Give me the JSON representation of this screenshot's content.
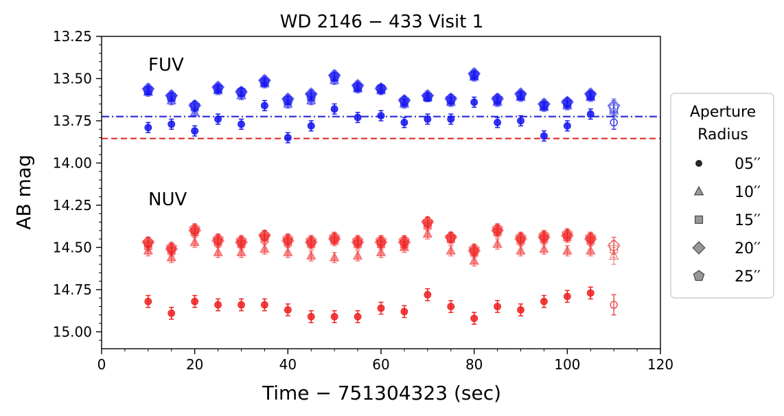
{
  "chart_data": {
    "type": "scatter",
    "title": "WD 2146 − 433 Visit 1",
    "xlabel": "Time − 751304323 (sec)",
    "ylabel": "AB mag",
    "xlim": [
      0,
      120
    ],
    "ylim": [
      15.1,
      13.25
    ],
    "y_inverted": true,
    "xticks": [
      "0",
      "20",
      "40",
      "60",
      "80",
      "100",
      "120"
    ],
    "yticks": [
      "13.25",
      "13.50",
      "13.75",
      "14.00",
      "14.25",
      "14.50",
      "14.75",
      "15.00"
    ],
    "xtick_values": [
      0,
      20,
      40,
      60,
      80,
      100,
      120
    ],
    "ytick_values": [
      13.25,
      13.5,
      13.75,
      14.0,
      14.25,
      14.5,
      14.75,
      15.0
    ],
    "band_labels": {
      "fuv": "FUV",
      "nuv": "NUV"
    },
    "reference_lines": [
      {
        "name": "FUV reference",
        "y": 13.725,
        "color": "#3b3bd8",
        "style": "dashdot"
      },
      {
        "name": "catalog reference",
        "y": 13.855,
        "color": "#e84040",
        "style": "dashed"
      }
    ],
    "legend": {
      "title_line1": "Aperture",
      "title_line2": "Radius",
      "position": "right",
      "entries": [
        {
          "label": "05′′",
          "marker": "circle"
        },
        {
          "label": "10′′",
          "marker": "triangle"
        },
        {
          "label": "15′′",
          "marker": "square"
        },
        {
          "label": "20′′",
          "marker": "diamond"
        },
        {
          "label": "25′′",
          "marker": "pentagon"
        }
      ]
    },
    "x": [
      10,
      15,
      20,
      25,
      30,
      35,
      40,
      45,
      50,
      55,
      60,
      65,
      70,
      75,
      80,
      85,
      90,
      95,
      100,
      105,
      110
    ],
    "series": [
      {
        "name": "FUV 05′′",
        "band": "fuv",
        "marker": "circle",
        "values": [
          13.79,
          13.77,
          13.81,
          13.74,
          13.77,
          13.66,
          13.85,
          13.78,
          13.68,
          13.73,
          13.72,
          13.76,
          13.74,
          13.74,
          13.64,
          13.76,
          13.75,
          13.84,
          13.78,
          13.71,
          13.76
        ],
        "errors": [
          0.03,
          0.03,
          0.03,
          0.03,
          0.03,
          0.03,
          0.03,
          0.03,
          0.03,
          0.03,
          0.03,
          0.03,
          0.03,
          0.03,
          0.03,
          0.03,
          0.03,
          0.03,
          0.03,
          0.03,
          0.04
        ]
      },
      {
        "name": "FUV 10′′",
        "band": "fuv",
        "marker": "triangle",
        "values": [
          13.58,
          13.63,
          13.7,
          13.57,
          13.6,
          13.53,
          13.65,
          13.63,
          13.51,
          13.56,
          13.57,
          13.65,
          13.61,
          13.64,
          13.49,
          13.64,
          13.61,
          13.67,
          13.66,
          13.61,
          13.69
        ],
        "errors": [
          0.025,
          0.025,
          0.025,
          0.025,
          0.025,
          0.025,
          0.025,
          0.025,
          0.025,
          0.025,
          0.025,
          0.025,
          0.025,
          0.025,
          0.025,
          0.025,
          0.025,
          0.025,
          0.025,
          0.025,
          0.04
        ]
      },
      {
        "name": "FUV 15′′",
        "band": "fuv",
        "marker": "square",
        "values": [
          13.57,
          13.61,
          13.67,
          13.56,
          13.58,
          13.52,
          13.63,
          13.61,
          13.49,
          13.55,
          13.56,
          13.64,
          13.61,
          13.63,
          13.48,
          13.63,
          13.6,
          13.66,
          13.65,
          13.6,
          13.68
        ],
        "errors": [
          0.025,
          0.025,
          0.025,
          0.025,
          0.025,
          0.025,
          0.025,
          0.025,
          0.025,
          0.025,
          0.025,
          0.025,
          0.025,
          0.025,
          0.025,
          0.025,
          0.025,
          0.025,
          0.025,
          0.025,
          0.04
        ]
      },
      {
        "name": "FUV 20′′",
        "band": "fuv",
        "marker": "diamond",
        "values": [
          13.56,
          13.6,
          13.66,
          13.55,
          13.58,
          13.51,
          13.62,
          13.59,
          13.48,
          13.54,
          13.56,
          13.63,
          13.6,
          13.62,
          13.47,
          13.62,
          13.59,
          13.65,
          13.64,
          13.59,
          13.66
        ],
        "errors": [
          0.025,
          0.025,
          0.025,
          0.025,
          0.025,
          0.025,
          0.025,
          0.025,
          0.025,
          0.025,
          0.025,
          0.025,
          0.025,
          0.025,
          0.025,
          0.025,
          0.025,
          0.025,
          0.025,
          0.025,
          0.04
        ]
      },
      {
        "name": "FUV 25′′",
        "band": "fuv",
        "marker": "pentagon",
        "values": [
          13.57,
          13.61,
          13.66,
          13.56,
          13.58,
          13.52,
          13.63,
          13.6,
          13.49,
          13.55,
          13.56,
          13.63,
          13.61,
          13.62,
          13.48,
          13.62,
          13.6,
          13.66,
          13.64,
          13.6,
          13.67
        ],
        "errors": [
          0.025,
          0.025,
          0.025,
          0.025,
          0.025,
          0.025,
          0.025,
          0.025,
          0.025,
          0.025,
          0.025,
          0.025,
          0.025,
          0.025,
          0.025,
          0.025,
          0.025,
          0.025,
          0.025,
          0.025,
          0.04
        ]
      },
      {
        "name": "NUV 05′′",
        "band": "nuv",
        "marker": "circle",
        "values": [
          14.82,
          14.89,
          14.82,
          14.84,
          14.84,
          14.84,
          14.87,
          14.91,
          14.91,
          14.91,
          14.86,
          14.88,
          14.78,
          14.85,
          14.92,
          14.85,
          14.87,
          14.82,
          14.79,
          14.77,
          14.84
        ],
        "errors": [
          0.035,
          0.035,
          0.035,
          0.035,
          0.035,
          0.035,
          0.035,
          0.035,
          0.035,
          0.035,
          0.035,
          0.035,
          0.035,
          0.035,
          0.035,
          0.035,
          0.035,
          0.035,
          0.035,
          0.035,
          0.06
        ]
      },
      {
        "name": "NUV 10′′",
        "band": "nuv",
        "marker": "triangle",
        "values": [
          14.52,
          14.56,
          14.47,
          14.53,
          14.53,
          14.51,
          14.53,
          14.55,
          14.56,
          14.55,
          14.53,
          14.5,
          14.42,
          14.52,
          14.58,
          14.48,
          14.52,
          14.51,
          14.52,
          14.52,
          14.55
        ],
        "errors": [
          0.03,
          0.03,
          0.03,
          0.03,
          0.03,
          0.03,
          0.03,
          0.03,
          0.03,
          0.03,
          0.03,
          0.03,
          0.03,
          0.03,
          0.03,
          0.03,
          0.03,
          0.03,
          0.03,
          0.03,
          0.05
        ]
      },
      {
        "name": "NUV 15′′",
        "band": "nuv",
        "marker": "square",
        "values": [
          14.49,
          14.52,
          14.41,
          14.47,
          14.48,
          14.45,
          14.47,
          14.48,
          14.46,
          14.48,
          14.48,
          14.48,
          14.37,
          14.45,
          14.53,
          14.41,
          14.46,
          14.45,
          14.44,
          14.46,
          14.51
        ],
        "errors": [
          0.03,
          0.03,
          0.03,
          0.03,
          0.03,
          0.03,
          0.03,
          0.03,
          0.03,
          0.03,
          0.03,
          0.03,
          0.03,
          0.03,
          0.03,
          0.03,
          0.03,
          0.03,
          0.03,
          0.03,
          0.05
        ]
      },
      {
        "name": "NUV 20′′",
        "band": "nuv",
        "marker": "diamond",
        "values": [
          14.47,
          14.51,
          14.4,
          14.46,
          14.47,
          14.43,
          14.46,
          14.47,
          14.45,
          14.47,
          14.47,
          14.47,
          14.35,
          14.44,
          14.52,
          14.4,
          14.45,
          14.44,
          14.43,
          14.45,
          14.49
        ],
        "errors": [
          0.03,
          0.03,
          0.03,
          0.03,
          0.03,
          0.03,
          0.03,
          0.03,
          0.03,
          0.03,
          0.03,
          0.03,
          0.03,
          0.03,
          0.03,
          0.03,
          0.03,
          0.03,
          0.03,
          0.03,
          0.05
        ]
      },
      {
        "name": "NUV 25′′",
        "band": "nuv",
        "marker": "pentagon",
        "values": [
          14.47,
          14.5,
          14.39,
          14.45,
          14.46,
          14.43,
          14.45,
          14.46,
          14.44,
          14.46,
          14.46,
          14.46,
          14.35,
          14.44,
          14.51,
          14.39,
          14.44,
          14.43,
          14.42,
          14.44,
          14.49
        ],
        "errors": [
          0.03,
          0.03,
          0.03,
          0.03,
          0.03,
          0.03,
          0.03,
          0.03,
          0.03,
          0.03,
          0.03,
          0.03,
          0.03,
          0.03,
          0.03,
          0.03,
          0.03,
          0.03,
          0.03,
          0.03,
          0.05
        ]
      }
    ],
    "colors": {
      "fuv": "#1414f0",
      "nuv": "#f01e1e",
      "fuv_last_open": "#3a3ae0",
      "nuv_last_open": "#e85050"
    },
    "last_point_open": true
  }
}
